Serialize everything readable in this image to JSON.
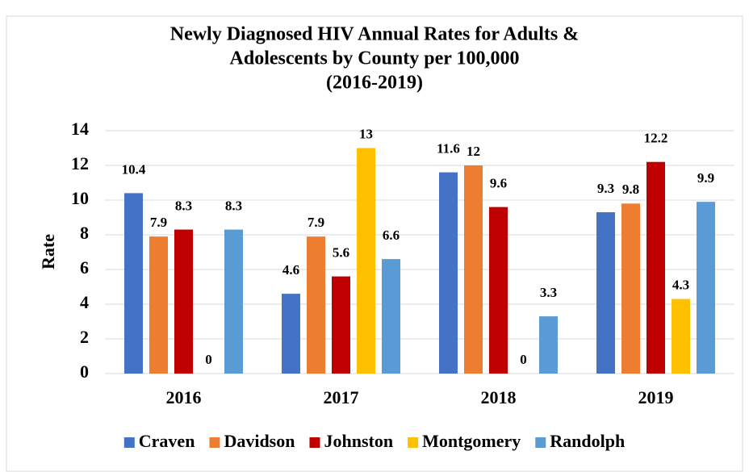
{
  "chart_data": {
    "type": "bar",
    "title": [
      "Newly Diagnosed HIV Annual Rates for Adults &",
      "Adolescents by County per 100,000",
      "(2016-2019)"
    ],
    "y_label": "Rate",
    "categories": [
      "2016",
      "2017",
      "2018",
      "2019"
    ],
    "series": [
      {
        "name": "Craven",
        "color": "#4472c4",
        "values": [
          10.4,
          4.6,
          11.6,
          9.3
        ]
      },
      {
        "name": "Davidson",
        "color": "#ed7d31",
        "values": [
          7.9,
          7.9,
          12,
          9.8
        ]
      },
      {
        "name": "Johnston",
        "color": "#c00000",
        "values": [
          8.3,
          5.6,
          9.6,
          12.2
        ]
      },
      {
        "name": "Montgomery",
        "color": "#ffc000",
        "values": [
          0,
          13,
          0,
          4.3
        ]
      },
      {
        "name": "Randolph",
        "color": "#5b9bd5",
        "values": [
          8.3,
          6.6,
          3.3,
          9.9
        ]
      }
    ],
    "ylim": [
      0,
      14
    ],
    "yticks": [
      0,
      2,
      4,
      6,
      8,
      10,
      12,
      14
    ],
    "grid": true,
    "legend": "bottom"
  }
}
